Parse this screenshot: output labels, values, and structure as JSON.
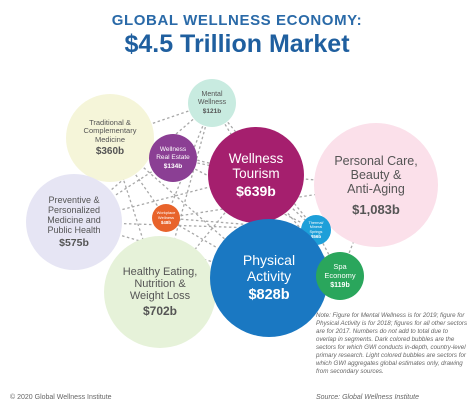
{
  "title": {
    "line1": "GLOBAL WELLNESS ECONOMY:",
    "line2": "$4.5 Trillion Market"
  },
  "bubbles": {
    "mental": {
      "label": "Mental\nWellness",
      "value": "$121b",
      "color": "#c8ebe0",
      "text_color": "#555555"
    },
    "traditional": {
      "label": "Traditional &\nComplementary\nMedicine",
      "value": "$360b",
      "color": "#f5f5d9",
      "text_color": "#555555"
    },
    "realestate": {
      "label": "Wellness\nReal Estate",
      "value": "$134b",
      "color": "#8b3f94",
      "text_color": "#ffffff"
    },
    "tourism": {
      "label": "Wellness\nTourism",
      "value": "$639b",
      "color": "#a51f6e",
      "text_color": "#ffffff"
    },
    "personal": {
      "label": "Personal Care,\nBeauty &\nAnti-Aging",
      "value": "$1,083b",
      "color": "#fbe0ea",
      "text_color": "#555555"
    },
    "preventive": {
      "label": "Preventive &\nPersonalized\nMedicine and\nPublic Health",
      "value": "$575b",
      "color": "#e6e5f4",
      "text_color": "#555555"
    },
    "workplace": {
      "label": "Workplace\nWellness",
      "value": "$48b",
      "color": "#e8632b",
      "text_color": "#ffffff"
    },
    "thermal": {
      "label": "Thermal/\nMineral\nSprings",
      "value": "$56b",
      "color": "#1d9fd9",
      "text_color": "#ffffff"
    },
    "healthy": {
      "label": "Healthy Eating,\nNutrition &\nWeight Loss",
      "value": "$702b",
      "color": "#e6f2d9",
      "text_color": "#555555"
    },
    "physical": {
      "label": "Physical\nActivity",
      "value": "$828b",
      "color": "#1a78c2",
      "text_color": "#ffffff"
    },
    "spa": {
      "label": "Spa\nEconomy",
      "value": "$119b",
      "color": "#2aa65c",
      "text_color": "#ffffff"
    }
  },
  "note": "Note: Figure for Mental Wellness is for 2019; figure for Physical Activity is for 2018; figures for all other sectors are for 2017. Numbers do not add to total due to overlap in segments. Dark colored bubbles are the sectors for which GWI conducts in-depth, country-level primary research. Light colored bubbles are sectors for which GWI aggregates global estimates only, drawing from secondary sources.",
  "footer": {
    "copyright": "© 2020 Global Wellness Institute",
    "source": "Source: Global Wellness Institute"
  }
}
